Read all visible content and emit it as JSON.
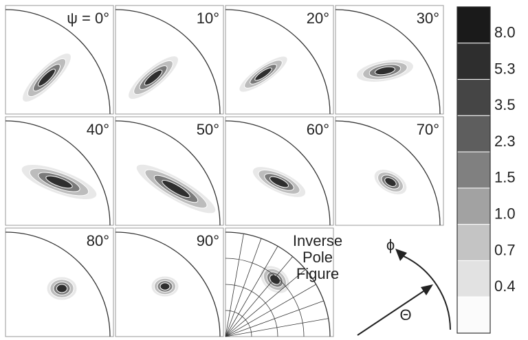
{
  "panels": [
    {
      "label": "ψ = 0°"
    },
    {
      "label": "10°"
    },
    {
      "label": "20°"
    },
    {
      "label": "30°"
    },
    {
      "label": "40°"
    },
    {
      "label": "50°"
    },
    {
      "label": "60°"
    },
    {
      "label": "70°"
    },
    {
      "label": "80°"
    },
    {
      "label": "90°"
    }
  ],
  "inverse_pole_figure": {
    "label": [
      "Inverse",
      "Pole",
      "Figure"
    ]
  },
  "axes": {
    "phi": "ϕ",
    "theta": "Θ"
  },
  "legend": {
    "labels": [
      "8.0",
      "5.3",
      "3.5",
      "2.3",
      "1.5",
      "1.0",
      "0.7",
      "0.4"
    ]
  }
}
